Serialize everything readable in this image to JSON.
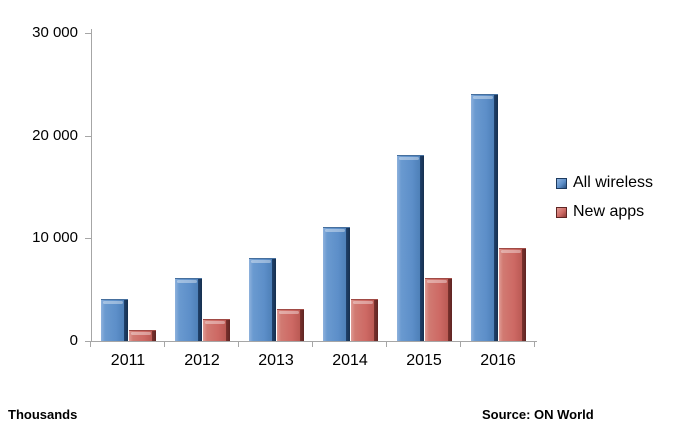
{
  "chart_data": {
    "type": "bar",
    "title": "",
    "categories": [
      "2011",
      "2012",
      "2013",
      "2014",
      "2015",
      "2016"
    ],
    "series": [
      {
        "name": "All wireless",
        "color": "#4F81BD",
        "values": [
          4000,
          6000,
          8000,
          11000,
          18000,
          24000
        ]
      },
      {
        "name": "New apps",
        "color": "#C0504D",
        "values": [
          1000,
          2000,
          3000,
          4000,
          6000,
          9000
        ]
      }
    ],
    "ylim": [
      0,
      30000
    ],
    "yticks": [
      {
        "value": 0,
        "label": "0"
      },
      {
        "value": 10000,
        "label": "10 000"
      },
      {
        "value": 20000,
        "label": "20 000"
      },
      {
        "value": 30000,
        "label": "30 000"
      }
    ],
    "y_unit": "Thousands",
    "grid": false,
    "legend_position": "right"
  },
  "footer": {
    "unit_label": "Thousands",
    "source_label": "Source: ON World"
  }
}
